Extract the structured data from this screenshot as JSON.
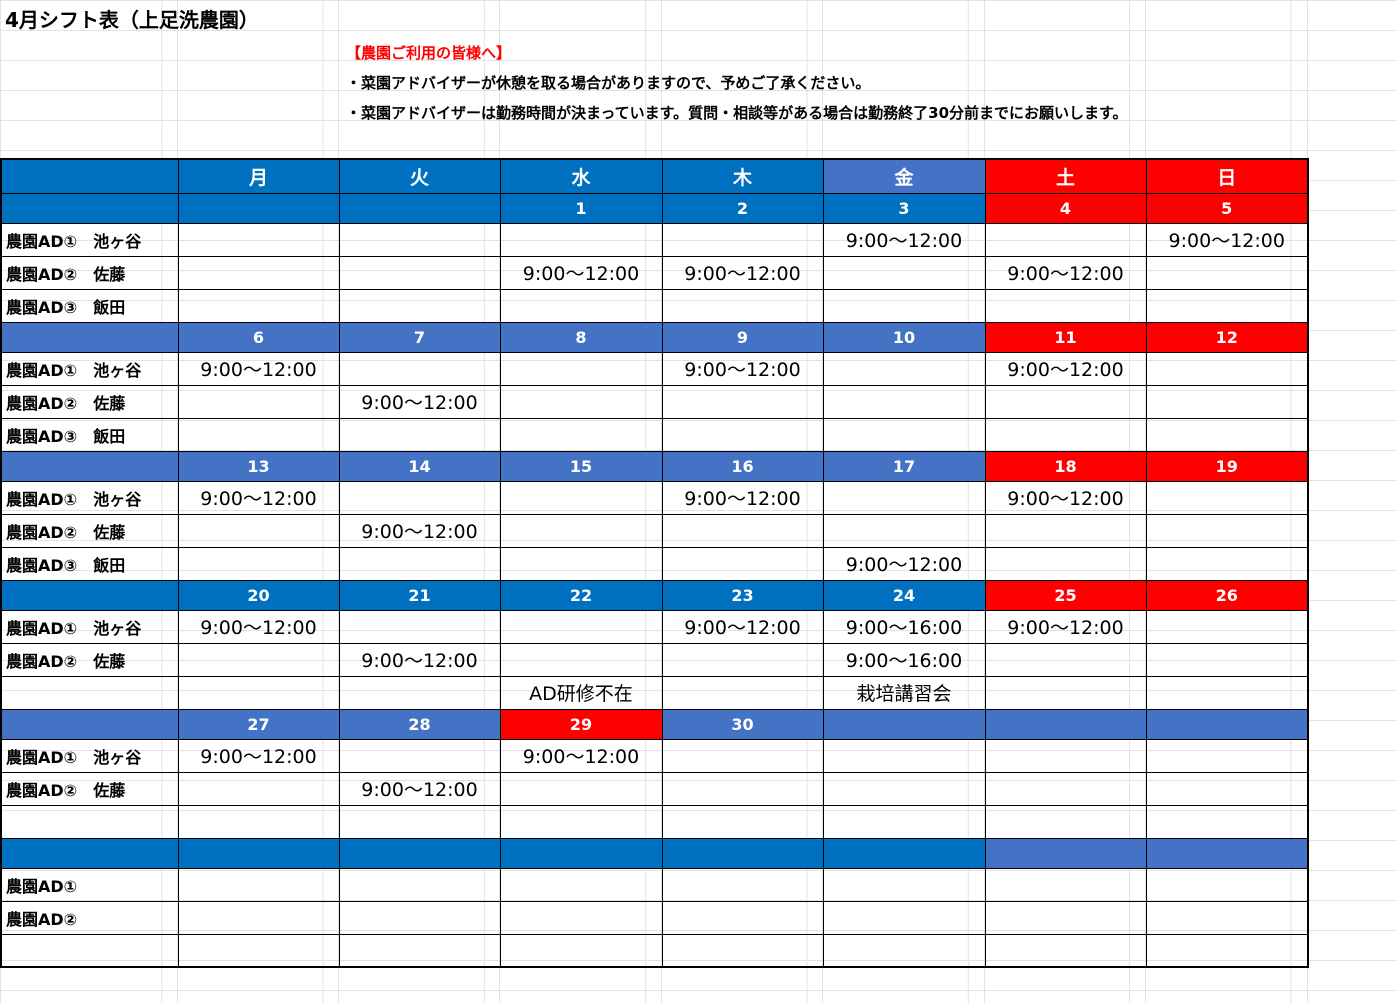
{
  "title": "4月シフト表（上足洗農園）",
  "notice": {
    "heading": "【農園ご利用の皆様へ】",
    "line1": "・菜園アドバイザーが休憩を取る場合がありますので、予めご了承ください。",
    "line2": "・菜園アドバイザーは勤務時間が決まっています。質問・相談等がある場合は勤務終了30分前までにお願いします。"
  },
  "colors": {
    "blue": "#0070c0",
    "lightblue": "#4472c4",
    "red": "#ff0000"
  },
  "weekdays": [
    "月",
    "火",
    "水",
    "木",
    "金",
    "土",
    "日"
  ],
  "weekday_colors": [
    "b1",
    "b1",
    "b1",
    "b1",
    "b2",
    "rd",
    "rd"
  ],
  "weeks": [
    {
      "dates": [
        "",
        "",
        "1",
        "2",
        "3",
        "4",
        "5"
      ],
      "colors": [
        "b1",
        "b1",
        "b1",
        "b1",
        "b1",
        "rd",
        "rd"
      ],
      "rows": [
        {
          "name": "農園AD①　池ヶ谷",
          "cells": [
            "",
            "",
            "",
            "",
            "9:00～12:00",
            "",
            "9:00～12:00"
          ]
        },
        {
          "name": "農園AD②　佐藤",
          "cells": [
            "",
            "",
            "9:00～12:00",
            "9:00～12:00",
            "",
            "9:00～12:00",
            ""
          ]
        },
        {
          "name": "農園AD③　飯田",
          "cells": [
            "",
            "",
            "",
            "",
            "",
            "",
            ""
          ]
        }
      ]
    },
    {
      "dates": [
        "6",
        "7",
        "8",
        "9",
        "10",
        "11",
        "12"
      ],
      "colors": [
        "b2",
        "b2",
        "b2",
        "b2",
        "b2",
        "rd",
        "rd"
      ],
      "rows": [
        {
          "name": "農園AD①　池ヶ谷",
          "cells": [
            "9:00～12:00",
            "",
            "",
            "9:00～12:00",
            "",
            "9:00～12:00",
            ""
          ]
        },
        {
          "name": "農園AD②　佐藤",
          "cells": [
            "",
            "9:00～12:00",
            "",
            "",
            "",
            "",
            ""
          ]
        },
        {
          "name": "農園AD③　飯田",
          "cells": [
            "",
            "",
            "",
            "",
            "",
            "",
            ""
          ]
        }
      ]
    },
    {
      "dates": [
        "13",
        "14",
        "15",
        "16",
        "17",
        "18",
        "19"
      ],
      "colors": [
        "b2",
        "b2",
        "b2",
        "b2",
        "b2",
        "rd",
        "rd"
      ],
      "rows": [
        {
          "name": "農園AD①　池ヶ谷",
          "cells": [
            "9:00～12:00",
            "",
            "",
            "9:00～12:00",
            "",
            "9:00～12:00",
            ""
          ]
        },
        {
          "name": "農園AD②　佐藤",
          "cells": [
            "",
            "9:00～12:00",
            "",
            "",
            "",
            "",
            ""
          ]
        },
        {
          "name": "農園AD③　飯田",
          "cells": [
            "",
            "",
            "",
            "",
            "9:00～12:00",
            "",
            ""
          ]
        }
      ]
    },
    {
      "dates": [
        "20",
        "21",
        "22",
        "23",
        "24",
        "25",
        "26"
      ],
      "colors": [
        "b1",
        "b1",
        "b1",
        "b1",
        "b1",
        "rd",
        "rd"
      ],
      "rows": [
        {
          "name": "農園AD①　池ヶ谷",
          "cells": [
            "9:00～12:00",
            "",
            "",
            "9:00～12:00",
            "9:00～16:00",
            "9:00～12:00",
            ""
          ]
        },
        {
          "name": "農園AD②　佐藤",
          "cells": [
            "",
            "9:00～12:00",
            "",
            "",
            "9:00～16:00",
            "",
            ""
          ]
        },
        {
          "name": "",
          "cells": [
            "",
            "",
            "AD研修不在",
            "",
            "栽培講習会",
            "",
            ""
          ]
        }
      ]
    },
    {
      "dates": [
        "27",
        "28",
        "29",
        "30",
        "",
        "",
        ""
      ],
      "colors": [
        "b2",
        "b2",
        "rd",
        "b2",
        "b2",
        "b2",
        "b2"
      ],
      "rows": [
        {
          "name": "農園AD①　池ヶ谷",
          "cells": [
            "9:00～12:00",
            "",
            "9:00～12:00",
            "",
            "",
            "",
            ""
          ]
        },
        {
          "name": "農園AD②　佐藤",
          "cells": [
            "",
            "9:00～12:00",
            "",
            "",
            "",
            "",
            ""
          ]
        },
        {
          "name": "",
          "cells": [
            "",
            "",
            "",
            "",
            "",
            "",
            ""
          ]
        }
      ]
    },
    {
      "dates": [
        "",
        "",
        "",
        "",
        "",
        "",
        ""
      ],
      "colors": [
        "b1",
        "b1",
        "b1",
        "b1",
        "b1",
        "b2",
        "b2"
      ],
      "rows": [
        {
          "name": "農園AD①",
          "cells": [
            "",
            "",
            "",
            "",
            "",
            "",
            ""
          ]
        },
        {
          "name": "農園AD②",
          "cells": [
            "",
            "",
            "",
            "",
            "",
            "",
            ""
          ]
        },
        {
          "name": "",
          "cells": [
            "",
            "",
            "",
            "",
            "",
            "",
            ""
          ]
        }
      ]
    }
  ]
}
